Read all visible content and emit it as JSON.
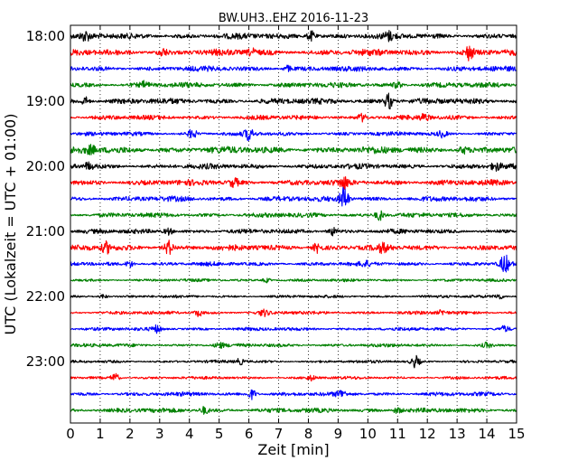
{
  "chart_data": {
    "type": "line",
    "title": "BW.UH3..EHZ 2016-11-23",
    "xlabel": "Zeit  [min]",
    "ylabel": "UTC (Lokalzeit = UTC + 01:00)",
    "xlim": [
      0,
      15
    ],
    "x_ticks": [
      "0",
      "1",
      "2",
      "3",
      "4",
      "5",
      "6",
      "7",
      "8",
      "9",
      "10",
      "11",
      "12",
      "13",
      "14",
      "15"
    ],
    "y_ticks": [
      "18:00",
      "19:00",
      "20:00",
      "21:00",
      "22:00",
      "23:00"
    ],
    "grid": "vertical dotted",
    "trace_interval_min": 15,
    "trace_colors": [
      "#000000",
      "#ff0000",
      "#0000ff",
      "#008000"
    ],
    "series": [
      {
        "start": "18:00",
        "color": "#000000",
        "amplitude": 0.5,
        "events": [
          [
            0.5,
            0.7
          ],
          [
            8.1,
            0.9
          ],
          [
            10.7,
            0.6
          ]
        ]
      },
      {
        "start": "18:15",
        "color": "#ff0000",
        "amplitude": 0.55,
        "events": [
          [
            3.1,
            0.6
          ],
          [
            13.4,
            1.2
          ],
          [
            6.1,
            0.5
          ]
        ]
      },
      {
        "start": "18:30",
        "color": "#0000ff",
        "amplitude": 0.45,
        "events": [
          [
            7.3,
            0.5
          ]
        ]
      },
      {
        "start": "18:45",
        "color": "#008000",
        "amplitude": 0.45,
        "events": [
          [
            2.5,
            0.5
          ],
          [
            11.0,
            0.5
          ]
        ]
      },
      {
        "start": "19:00",
        "color": "#000000",
        "amplitude": 0.5,
        "events": [
          [
            0.5,
            0.7
          ],
          [
            10.7,
            1.4
          ]
        ]
      },
      {
        "start": "19:15",
        "color": "#ff0000",
        "amplitude": 0.4,
        "events": [
          [
            9.8,
            0.6
          ],
          [
            11.9,
            0.6
          ]
        ]
      },
      {
        "start": "19:30",
        "color": "#0000ff",
        "amplitude": 0.35,
        "events": [
          [
            4.1,
            0.8
          ],
          [
            6.0,
            1.0
          ],
          [
            12.5,
            0.5
          ]
        ]
      },
      {
        "start": "19:45",
        "color": "#008000",
        "amplitude": 0.6,
        "events": [
          [
            0.7,
            0.6
          ],
          [
            13.2,
            0.5
          ]
        ]
      },
      {
        "start": "20:00",
        "color": "#000000",
        "amplitude": 0.45,
        "events": [
          [
            0.6,
            0.6
          ],
          [
            14.3,
            0.6
          ]
        ]
      },
      {
        "start": "20:15",
        "color": "#ff0000",
        "amplitude": 0.5,
        "events": [
          [
            5.5,
            0.7
          ],
          [
            9.2,
            0.9
          ]
        ]
      },
      {
        "start": "20:30",
        "color": "#0000ff",
        "amplitude": 0.45,
        "events": [
          [
            9.2,
            2.2
          ]
        ]
      },
      {
        "start": "20:45",
        "color": "#008000",
        "amplitude": 0.4,
        "events": [
          [
            10.4,
            0.9
          ]
        ]
      },
      {
        "start": "21:00",
        "color": "#000000",
        "amplitude": 0.4,
        "events": [
          [
            3.3,
            0.6
          ],
          [
            8.8,
            0.7
          ]
        ]
      },
      {
        "start": "21:15",
        "color": "#ff0000",
        "amplitude": 0.5,
        "events": [
          [
            1.2,
            0.9
          ],
          [
            3.3,
            1.2
          ],
          [
            8.3,
            0.8
          ],
          [
            10.5,
            0.6
          ]
        ]
      },
      {
        "start": "21:30",
        "color": "#0000ff",
        "amplitude": 0.35,
        "events": [
          [
            2.0,
            0.6
          ],
          [
            9.9,
            0.4
          ],
          [
            14.6,
            1.6
          ]
        ]
      },
      {
        "start": "21:45",
        "color": "#008000",
        "amplitude": 0.25,
        "events": [
          [
            6.6,
            0.4
          ]
        ]
      },
      {
        "start": "22:00",
        "color": "#000000",
        "amplitude": 0.25,
        "events": [
          [
            1.1,
            0.4
          ],
          [
            14.4,
            0.5
          ]
        ]
      },
      {
        "start": "22:15",
        "color": "#ff0000",
        "amplitude": 0.3,
        "events": [
          [
            4.3,
            0.6
          ],
          [
            6.5,
            0.5
          ],
          [
            12.5,
            0.4
          ]
        ]
      },
      {
        "start": "22:30",
        "color": "#0000ff",
        "amplitude": 0.3,
        "events": [
          [
            2.9,
            0.6
          ],
          [
            14.6,
            0.5
          ]
        ]
      },
      {
        "start": "22:45",
        "color": "#008000",
        "amplitude": 0.3,
        "events": [
          [
            5.0,
            0.5
          ],
          [
            14.0,
            0.4
          ]
        ]
      },
      {
        "start": "23:00",
        "color": "#000000",
        "amplitude": 0.25,
        "events": [
          [
            5.7,
            0.5
          ],
          [
            11.6,
            1.0
          ]
        ]
      },
      {
        "start": "23:15",
        "color": "#ff0000",
        "amplitude": 0.25,
        "events": [
          [
            1.5,
            0.8
          ],
          [
            8.1,
            0.4
          ]
        ]
      },
      {
        "start": "23:30",
        "color": "#0000ff",
        "amplitude": 0.35,
        "events": [
          [
            6.1,
            0.9
          ],
          [
            9.1,
            0.6
          ]
        ]
      },
      {
        "start": "23:45",
        "color": "#008000",
        "amplitude": 0.4,
        "events": [
          [
            4.5,
            0.6
          ],
          [
            11.0,
            0.5
          ]
        ]
      }
    ]
  }
}
